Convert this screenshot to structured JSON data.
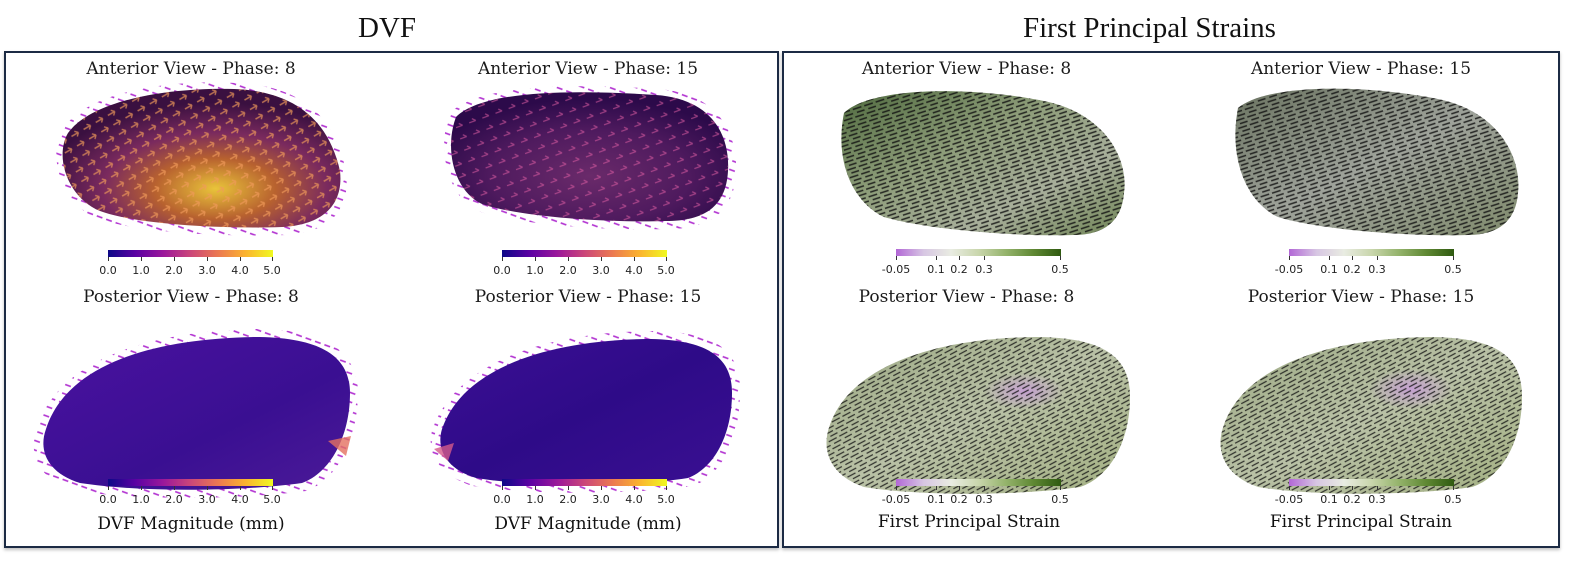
{
  "sections": {
    "dvf_title": "DVF",
    "strain_title": "First Principal Strains"
  },
  "dvf": {
    "views": [
      {
        "title": "Anterior View - Phase: 8"
      },
      {
        "title": "Anterior View - Phase: 15"
      },
      {
        "title": "Posterior View - Phase: 8"
      },
      {
        "title": "Posterior View - Phase: 15"
      }
    ],
    "colorbar": {
      "ticks": [
        "0.0",
        "1.0",
        "2.0",
        "3.0",
        "4.0",
        "5.0"
      ],
      "label": "DVF Magnitude (mm)",
      "colors": [
        "#0d0887",
        "#5b02a3",
        "#9a179b",
        "#cb4679",
        "#eb7852",
        "#fbb32f",
        "#f0f921"
      ]
    }
  },
  "strain": {
    "views": [
      {
        "title": "Anterior View - Phase: 8"
      },
      {
        "title": "Anterior View - Phase: 15"
      },
      {
        "title": "Posterior View - Phase: 8"
      },
      {
        "title": "Posterior View - Phase: 15"
      }
    ],
    "colorbar": {
      "ticks": [
        "-0.05",
        "0.1",
        "0.2",
        "0.3",
        "0.5"
      ],
      "label": "First Principal Strain",
      "colors": [
        "#b267d6",
        "#d7c6e3",
        "#e9ece2",
        "#c9d6ac",
        "#94b36b",
        "#5f8833",
        "#2f5a10"
      ]
    }
  }
}
